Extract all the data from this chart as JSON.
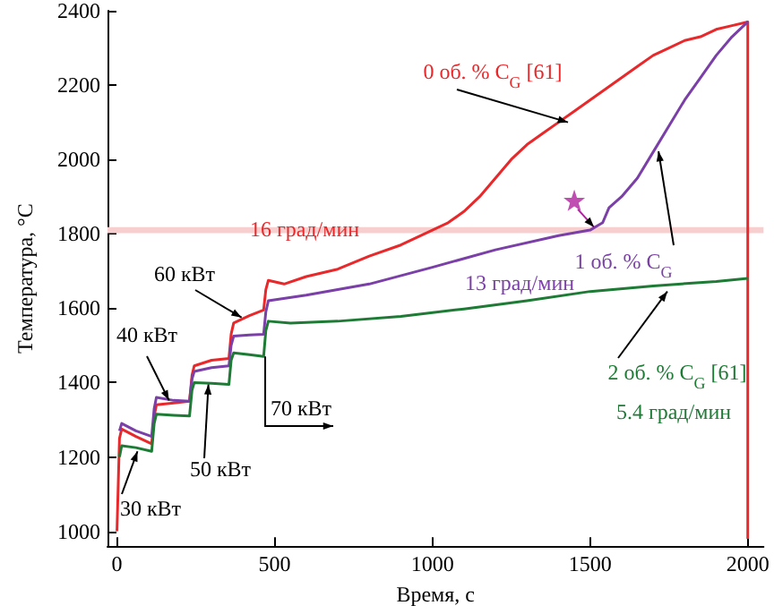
{
  "chart_data": {
    "type": "line",
    "xlabel": "Время, с",
    "ylabel": "Температура, °C",
    "xlim": [
      -30,
      2050
    ],
    "xticks": [
      0,
      500,
      1000,
      1500,
      2000
    ],
    "ylim": [
      960,
      2400
    ],
    "yticks": [
      1000,
      1200,
      1400,
      1600,
      1800,
      2000,
      2200,
      2400
    ],
    "grid": false,
    "marker": "none",
    "line_style": "solid",
    "bands": [
      {
        "axis": "y",
        "from": 1802,
        "to": 1818,
        "color": "#f8cfcf"
      }
    ],
    "series": [
      {
        "color": "#e8282a",
        "x": [
          0,
          8,
          15,
          60,
          110,
          118,
          125,
          180,
          230,
          238,
          245,
          300,
          355,
          362,
          370,
          420,
          465,
          472,
          480,
          530,
          600,
          700,
          800,
          900,
          1000,
          1050,
          1100,
          1150,
          1200,
          1250,
          1300,
          1350,
          1400,
          1450,
          1500,
          1550,
          1600,
          1650,
          1700,
          1750,
          1800,
          1850,
          1900,
          1950,
          2000,
          2000
        ],
        "values": [
          1000,
          1250,
          1275,
          1255,
          1235,
          1310,
          1340,
          1345,
          1350,
          1420,
          1445,
          1460,
          1465,
          1530,
          1560,
          1580,
          1595,
          1650,
          1675,
          1665,
          1685,
          1705,
          1740,
          1770,
          1810,
          1830,
          1860,
          1900,
          1950,
          2000,
          2040,
          2070,
          2100,
          2130,
          2160,
          2190,
          2220,
          2250,
          2280,
          2300,
          2320,
          2330,
          2350,
          2360,
          2370,
          980
        ]
      },
      {
        "color": "#7b3fa8",
        "x": [
          8,
          15,
          60,
          110,
          118,
          125,
          180,
          230,
          238,
          245,
          300,
          355,
          362,
          370,
          420,
          465,
          472,
          480,
          600,
          800,
          1000,
          1200,
          1400,
          1500,
          1540,
          1560,
          1600,
          1650,
          1700,
          1750,
          1800,
          1850,
          1900,
          1950,
          2000
        ],
        "values": [
          1270,
          1290,
          1270,
          1255,
          1330,
          1360,
          1352,
          1350,
          1410,
          1430,
          1440,
          1445,
          1500,
          1525,
          1528,
          1530,
          1590,
          1620,
          1635,
          1665,
          1710,
          1757,
          1795,
          1810,
          1830,
          1870,
          1900,
          1950,
          2020,
          2090,
          2160,
          2220,
          2280,
          2330,
          2370
        ]
      },
      {
        "color": "#1e7b35",
        "x": [
          8,
          15,
          60,
          110,
          118,
          125,
          180,
          230,
          238,
          245,
          300,
          355,
          362,
          370,
          420,
          465,
          472,
          480,
          550,
          700,
          900,
          1100,
          1300,
          1500,
          1700,
          1900,
          2000
        ],
        "values": [
          1200,
          1230,
          1225,
          1215,
          1290,
          1315,
          1312,
          1310,
          1380,
          1400,
          1398,
          1395,
          1460,
          1480,
          1475,
          1470,
          1540,
          1565,
          1560,
          1565,
          1578,
          1598,
          1620,
          1645,
          1660,
          1672,
          1680
        ]
      },
      {
        "type": "scatter",
        "marker": "star",
        "color": "#b0209f",
        "x": [
          1450
        ],
        "values": [
          1890
        ]
      }
    ],
    "annotations": [
      {
        "text": "0 об. % C$_{G}$ [61]",
        "x": 1430,
        "y": 2100
      },
      "16 град/мин",
      {
        "text": "1 об. % C$_{G}$",
        "x": 1717,
        "y": 2022
      },
      "13 град/мин",
      {
        "text": "2 об. % C$_{G}$ [61]",
        "x": 1745,
        "y": 1645
      },
      "5.4 град/мин",
      {
        "text": "30 кВт",
        "x": 65,
        "y": 1215
      },
      {
        "text": "40 кВт",
        "x": 165,
        "y": 1352
      },
      {
        "text": "50 кВт",
        "x": 290,
        "y": 1395
      },
      {
        "text": "60 кВт",
        "x": 395,
        "y": 1575
      },
      {
        "text": "70 кВт",
        "x": 470,
        "y": 1470
      }
    ]
  }
}
